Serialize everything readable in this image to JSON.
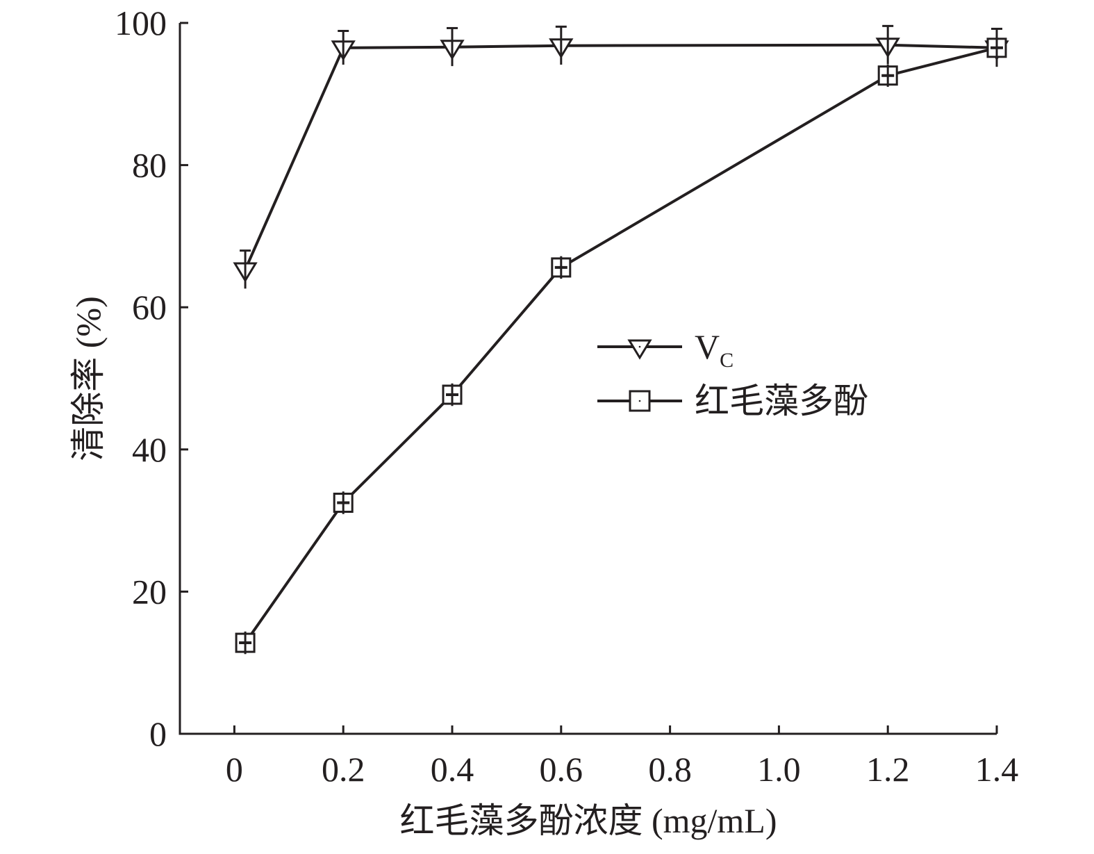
{
  "chart_data": {
    "type": "line",
    "title": "",
    "xlabel": "红毛藻多酚浓度 (mg/mL)",
    "ylabel": "清除率 (%)",
    "xlim": [
      -0.1,
      1.4
    ],
    "ylim": [
      0,
      100
    ],
    "x_ticks": [
      0,
      0.2,
      0.4,
      0.6,
      0.8,
      1.0,
      1.2,
      1.4
    ],
    "x_tick_labels": [
      "0",
      "0.2",
      "0.4",
      "0.6",
      "0.8",
      "1.0",
      "1.2",
      "1.4"
    ],
    "y_ticks": [
      0,
      20,
      40,
      60,
      80,
      100
    ],
    "y_tick_labels": [
      "0",
      "20",
      "40",
      "60",
      "80",
      "100"
    ],
    "grid": false,
    "legend_position": "center-right",
    "series": [
      {
        "name": "VC",
        "label_main": "V",
        "label_sub": "C",
        "marker": "triangle-down",
        "x": [
          0.02,
          0.2,
          0.4,
          0.6,
          1.2,
          1.4
        ],
        "y": [
          65.3,
          96.5,
          96.6,
          96.8,
          96.9,
          96.5
        ],
        "error": [
          1.5,
          1.2,
          1.5,
          1.5,
          1.5,
          1.5
        ]
      },
      {
        "name": "红毛藻多酚",
        "label_main": "红毛藻多酚",
        "label_sub": "",
        "marker": "square",
        "x": [
          0.02,
          0.2,
          0.4,
          0.6,
          1.2,
          1.4
        ],
        "y": [
          12.8,
          32.5,
          47.7,
          65.6,
          92.6,
          96.5
        ],
        "error": [
          1.0,
          1.0,
          1.0,
          1.0,
          1.0,
          1.0
        ]
      }
    ]
  }
}
